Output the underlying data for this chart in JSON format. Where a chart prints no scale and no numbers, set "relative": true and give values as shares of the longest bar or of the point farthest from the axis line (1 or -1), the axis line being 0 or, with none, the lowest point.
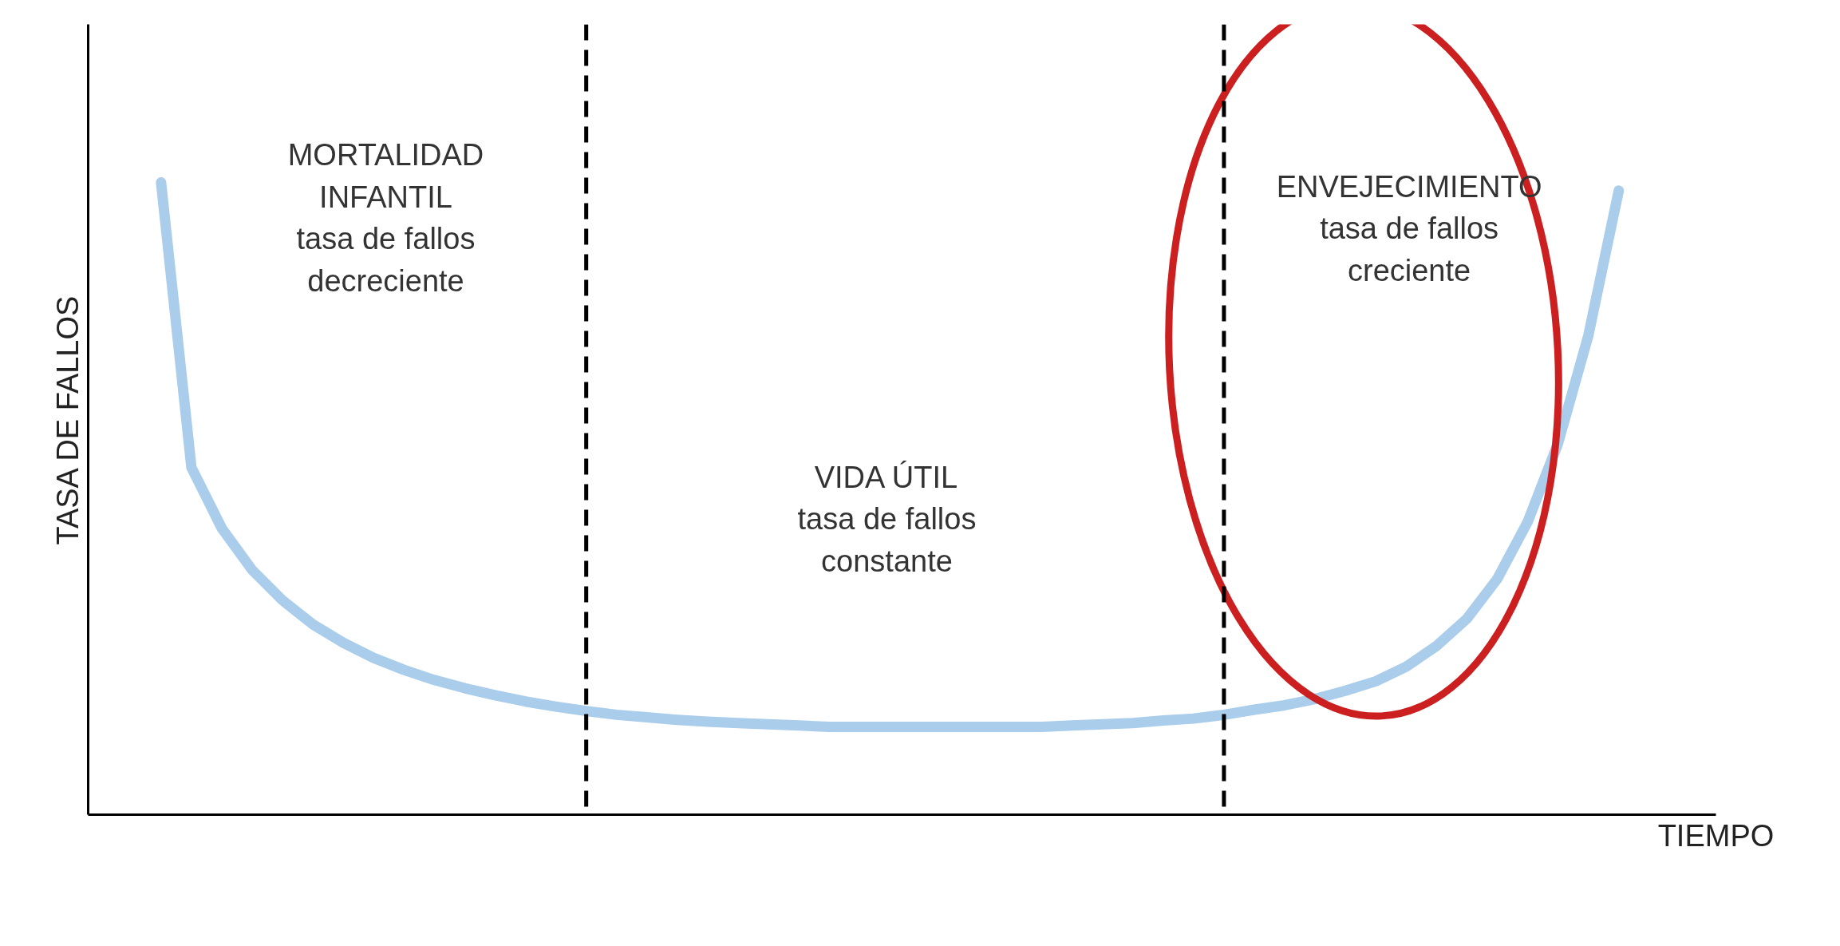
{
  "chart_data": {
    "type": "line",
    "relative": true,
    "xlabel": "TIEMPO",
    "ylabel": "TASA DE FALLOS",
    "categories": [
      null,
      null,
      null,
      null,
      null,
      null,
      null,
      null,
      null,
      null,
      null,
      null,
      null,
      null,
      null,
      null,
      null,
      null,
      null,
      null,
      null,
      null,
      null,
      null,
      null,
      null,
      null,
      null,
      null,
      null,
      null,
      null,
      null,
      null,
      null,
      null,
      null,
      null,
      null,
      null,
      null,
      null,
      null,
      null,
      null,
      null,
      null,
      null,
      null
    ],
    "series": [
      {
        "color": "#a9cdea",
        "values": [
          1.0,
          0.549,
          0.453,
          0.387,
          0.339,
          0.301,
          0.272,
          0.248,
          0.229,
          0.213,
          0.2,
          0.189,
          0.179,
          0.171,
          0.164,
          0.158,
          0.154,
          0.15,
          0.147,
          0.145,
          0.143,
          0.141,
          0.139,
          0.139,
          0.139,
          0.139,
          0.139,
          0.139,
          0.139,
          0.139,
          0.141,
          0.143,
          0.145,
          0.149,
          0.152,
          0.158,
          0.166,
          0.173,
          0.183,
          0.196,
          0.211,
          0.234,
          0.267,
          0.31,
          0.373,
          0.463,
          0.587,
          0.758,
          0.987
        ]
      }
    ],
    "annotations": [
      "MORTALIDAD\nINFANTIL\ntasa de fallos\ndecreciente",
      "VIDA ÚTIL\ntasa de fallos\nconstante",
      "ENVEJECIMIENTO\ntasa de fallos\ncreciente"
    ],
    "marker": "none",
    "line_style": "solid"
  }
}
